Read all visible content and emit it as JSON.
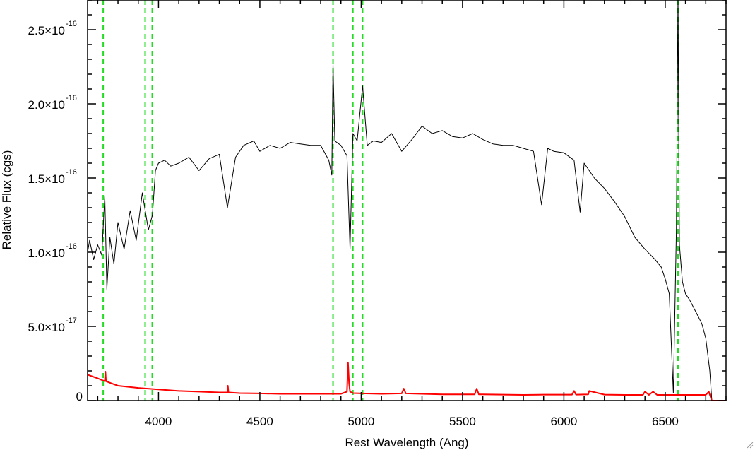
{
  "chart_data": {
    "type": "line",
    "xlabel": "Rest Wavelength (Ang)",
    "ylabel": "Relative Flux (cgs)",
    "xlim": [
      3650,
      6800
    ],
    "ylim": [
      0,
      2.7e-16
    ],
    "x_ticks": [
      {
        "value": 4000,
        "label": "4000"
      },
      {
        "value": 4500,
        "label": "4500"
      },
      {
        "value": 5000,
        "label": "5000"
      },
      {
        "value": 5500,
        "label": "5500"
      },
      {
        "value": 6000,
        "label": "6000"
      },
      {
        "value": 6500,
        "label": "6500"
      }
    ],
    "y_ticks": [
      {
        "value": 0,
        "mantissa": "0",
        "exponent": ""
      },
      {
        "value": 5e-17,
        "mantissa": "5.0×10",
        "exponent": "-17"
      },
      {
        "value": 1e-16,
        "mantissa": "1.0×10",
        "exponent": "-16"
      },
      {
        "value": 1.5e-16,
        "mantissa": "1.5×10",
        "exponent": "-16"
      },
      {
        "value": 2e-16,
        "mantissa": "2.0×10",
        "exponent": "-16"
      },
      {
        "value": 2.5e-16,
        "mantissa": "2.5×10",
        "exponent": "-16"
      }
    ],
    "x_minor_step": 100,
    "y_minor_step": 1e-17,
    "vlines": [
      3727,
      3934,
      3969,
      4861,
      4959,
      5007,
      6563
    ],
    "series": [
      {
        "color": "#000000",
        "x": [
          3650,
          3660,
          3680,
          3700,
          3720,
          3735,
          3745,
          3760,
          3780,
          3800,
          3830,
          3860,
          3890,
          3920,
          3950,
          3970,
          3985,
          4000,
          4030,
          4060,
          4100,
          4150,
          4200,
          4250,
          4300,
          4340,
          4380,
          4420,
          4470,
          4500,
          4550,
          4600,
          4650,
          4700,
          4750,
          4800,
          4840,
          4855,
          4861,
          4870,
          4900,
          4930,
          4945,
          4959,
          4980,
          5007,
          5030,
          5060,
          5100,
          5150,
          5200,
          5250,
          5300,
          5350,
          5400,
          5450,
          5500,
          5550,
          5600,
          5650,
          5700,
          5750,
          5800,
          5850,
          5890,
          5920,
          5950,
          6000,
          6050,
          6080,
          6100,
          6150,
          6200,
          6250,
          6300,
          6350,
          6400,
          6450,
          6480,
          6500,
          6520,
          6540,
          6555,
          6563,
          6570,
          6585,
          6600,
          6620,
          6650,
          6680,
          6700,
          6720,
          6730
        ],
        "y": [
          1e-16,
          1.08e-16,
          9.5e-17,
          1.05e-16,
          9.8e-17,
          1.38e-16,
          7.5e-17,
          1.1e-16,
          9.2e-17,
          1.2e-16,
          1.02e-16,
          1.28e-16,
          1.08e-16,
          1.4e-16,
          1.15e-16,
          1.25e-16,
          1.55e-16,
          1.6e-16,
          1.62e-16,
          1.58e-16,
          1.6e-16,
          1.64e-16,
          1.55e-16,
          1.63e-16,
          1.66e-16,
          1.3e-16,
          1.64e-16,
          1.72e-16,
          1.75e-16,
          1.68e-16,
          1.72e-16,
          1.7e-16,
          1.74e-16,
          1.73e-16,
          1.72e-16,
          1.72e-16,
          1.62e-16,
          1.52e-16,
          2.27e-16,
          1.75e-16,
          1.72e-16,
          1.65e-16,
          1.02e-16,
          1.8e-16,
          1.75e-16,
          2.12e-16,
          1.72e-16,
          1.75e-16,
          1.74e-16,
          1.8e-16,
          1.68e-16,
          1.76e-16,
          1.85e-16,
          1.8e-16,
          1.82e-16,
          1.78e-16,
          1.77e-16,
          1.8e-16,
          1.76e-16,
          1.73e-16,
          1.72e-16,
          1.72e-16,
          1.7e-16,
          1.68e-16,
          1.32e-16,
          1.7e-16,
          1.68e-16,
          1.67e-16,
          1.62e-16,
          1.27e-16,
          1.6e-16,
          1.5e-16,
          1.43e-16,
          1.34e-16,
          1.24e-16,
          1.1e-16,
          1.02e-16,
          9.5e-17,
          9e-17,
          8.2e-17,
          7.2e-17,
          5e-18,
          1.15e-16,
          2.72e-16,
          1.05e-16,
          8e-17,
          7.2e-17,
          6.8e-17,
          6e-17,
          5.2e-17,
          4.2e-17,
          2e-17,
          0.0
        ]
      },
      {
        "color": "#ff0000",
        "x": [
          3650,
          3700,
          3735,
          3738,
          3741,
          3780,
          3800,
          3900,
          4000,
          4100,
          4200,
          4300,
          4340,
          4342,
          4345,
          4400,
          4500,
          4600,
          4700,
          4800,
          4900,
          4930,
          4935,
          4940,
          4945,
          4960,
          5100,
          5200,
          5210,
          5220,
          5300,
          5400,
          5500,
          5560,
          5570,
          5580,
          5600,
          5700,
          5800,
          5900,
          6000,
          6040,
          6050,
          6060,
          6120,
          6125,
          6200,
          6300,
          6390,
          6400,
          6420,
          6440,
          6460,
          6500,
          6600,
          6650,
          6700,
          6715,
          6730,
          6800
        ],
        "y": [
          1.75e-17,
          1.5e-17,
          1.3e-17,
          1.95e-17,
          1.3e-17,
          1.1e-17,
          1e-17,
          8.5e-18,
          7.5e-18,
          6.5e-18,
          6e-18,
          5.5e-18,
          5.5e-18,
          1e-17,
          5.5e-18,
          5e-18,
          4.8e-18,
          4.5e-18,
          4.5e-18,
          4.5e-18,
          4.5e-18,
          6e-18,
          2.55e-17,
          1.2e-17,
          6e-18,
          5e-18,
          4.5e-18,
          4.8e-18,
          8e-18,
          4.8e-18,
          4.5e-18,
          4.2e-18,
          4.2e-18,
          4.2e-18,
          8e-18,
          4.2e-18,
          4.2e-18,
          4e-18,
          3.8e-18,
          4e-18,
          4e-18,
          4e-18,
          6.5e-18,
          4e-18,
          4.2e-18,
          6.5e-18,
          4e-18,
          3.8e-18,
          3.8e-18,
          6e-18,
          3.8e-18,
          6e-18,
          3.8e-18,
          3.8e-18,
          3.8e-18,
          3.8e-18,
          3.8e-18,
          6e-18,
          0.0,
          0.0
        ]
      }
    ],
    "colors": {
      "vline": "#22dd22",
      "axes": "#000000",
      "background": "#ffffff"
    }
  }
}
